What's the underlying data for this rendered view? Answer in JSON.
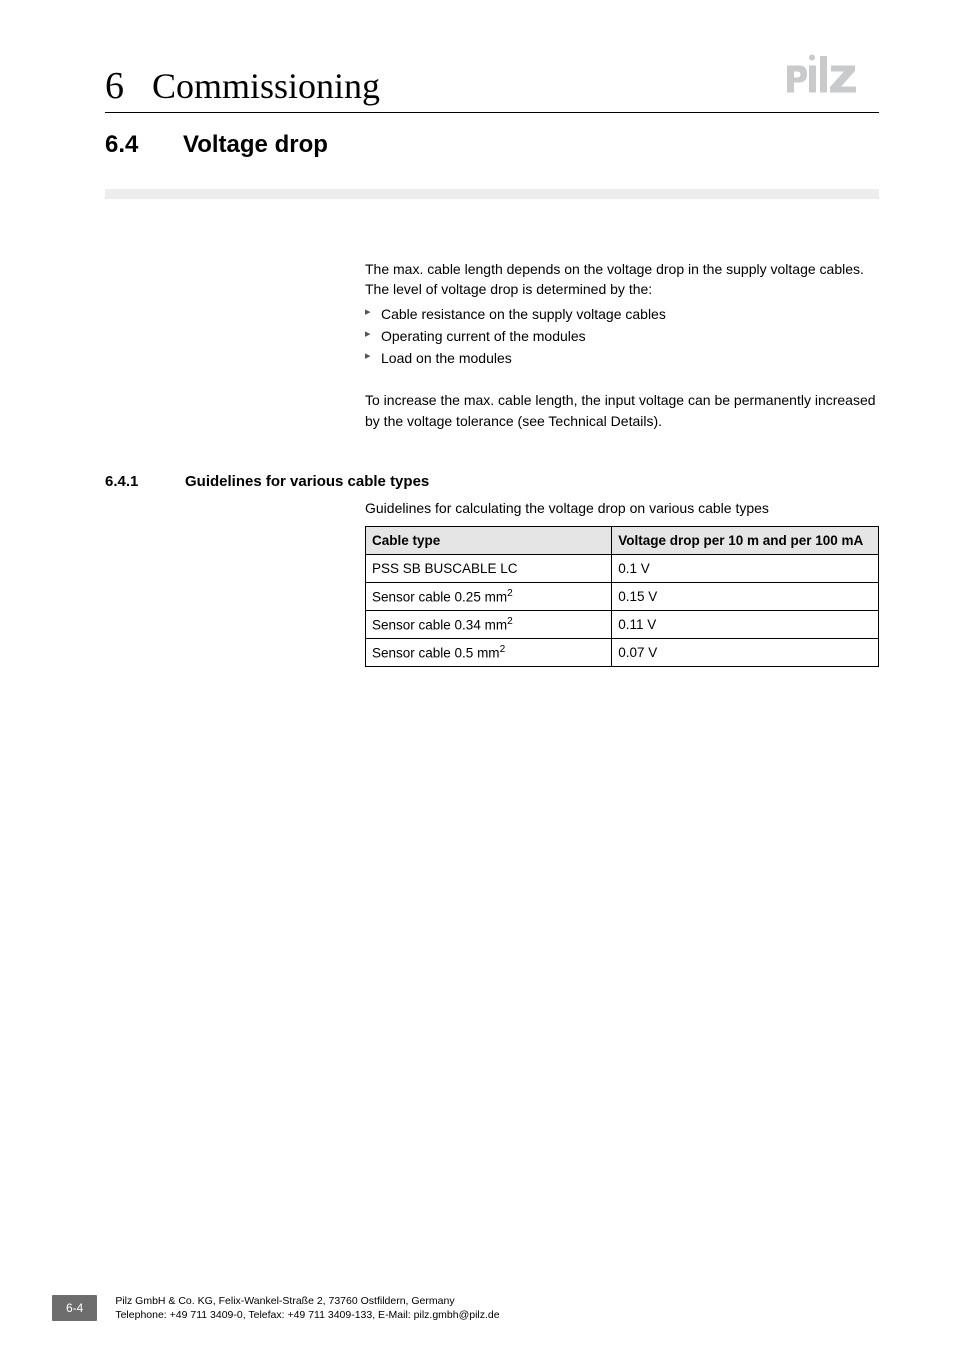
{
  "header": {
    "chapter_number": "6",
    "chapter_title": "Commissioning"
  },
  "section": {
    "number": "6.4",
    "title": "Voltage drop"
  },
  "intro": {
    "para1": "The max. cable length depends on the voltage drop in the supply voltage cables. The level of voltage drop is determined by the:",
    "bullets": [
      "Cable resistance on the supply voltage cables",
      "Operating current of the modules",
      "Load on the modules"
    ],
    "para2": "To increase the max. cable length, the input voltage can be permanently increased by the voltage tolerance (see Technical Details)."
  },
  "subsection": {
    "number": "6.4.1",
    "title": "Guidelines for various cable types",
    "lead": "Guidelines for calculating the voltage drop on various cable types",
    "table": {
      "columns": [
        "Cable type",
        "Voltage drop per 10 m and per 100 mA"
      ],
      "rows": [
        {
          "type_prefix": "PSS SB BUSCABLE LC",
          "type_val": "",
          "type_sup": false,
          "drop": "0.1 V"
        },
        {
          "type_prefix": "Sensor cable 0.25 mm",
          "type_val": "2",
          "type_sup": true,
          "drop": "0.15 V"
        },
        {
          "type_prefix": "Sensor cable 0.34 mm",
          "type_val": "2",
          "type_sup": true,
          "drop": "0.11 V"
        },
        {
          "type_prefix": "Sensor cable 0.5 mm",
          "type_val": "2",
          "type_sup": true,
          "drop": "0.07 V"
        }
      ]
    }
  },
  "footer": {
    "page": "6-4",
    "line1": "Pilz GmbH & Co. KG, Felix-Wankel-Straße 2, 73760 Ostfildern, Germany",
    "line2": "Telephone: +49 711 3409-0, Telefax: +49 711 3409-133, E-Mail: pilz.gmbh@pilz.de"
  },
  "logo": {
    "fill": "#c9cacb"
  }
}
